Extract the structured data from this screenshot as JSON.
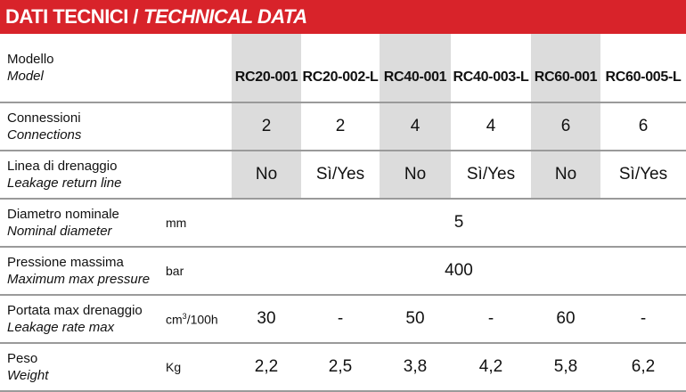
{
  "header": {
    "title_main": "DATI TECNICI /",
    "title_italic": "TECHNICAL DATA"
  },
  "models": [
    "RC20-001",
    "RC20-002-L",
    "RC40-001",
    "RC40-003-L",
    "RC60-001",
    "RC60-005-L"
  ],
  "rows": {
    "model": {
      "label": "Modello",
      "label_en": "Model"
    },
    "connections": {
      "label": "Connessioni",
      "label_en": "Connections",
      "values": [
        "2",
        "2",
        "4",
        "4",
        "6",
        "6"
      ]
    },
    "leakage_line": {
      "label": "Linea di drenaggio",
      "label_en": "Leakage return line",
      "values": [
        "No",
        "Sì/Yes",
        "No",
        "Sì/Yes",
        "No",
        "Sì/Yes"
      ]
    },
    "diameter": {
      "label": "Diametro nominale",
      "label_en": "Nominal diameter",
      "unit": "mm",
      "value": "5"
    },
    "pressure": {
      "label": "Pressione massima",
      "label_en": "Maximum max pressure",
      "unit": "bar",
      "value": "400"
    },
    "leakage_rate": {
      "label": "Portata max drenaggio",
      "label_en": "Leakage rate max",
      "unit_base": "cm",
      "unit_sup": "3",
      "unit_tail": "/100h",
      "values": [
        "30",
        "-",
        "50",
        "-",
        "60",
        "-"
      ]
    },
    "weight": {
      "label": "Peso",
      "label_en": "Weight",
      "unit": "Kg",
      "values": [
        "2,2",
        "2,5",
        "3,8",
        "4,2",
        "5,8",
        "6,2"
      ]
    }
  },
  "colors": {
    "header_bg": "#d8232a",
    "shade": "#dcdcdc",
    "rule": "#9a9a9a"
  }
}
